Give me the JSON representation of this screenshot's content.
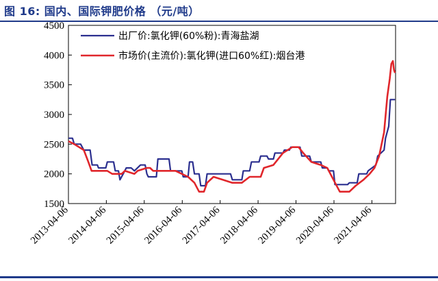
{
  "figure": {
    "title": "图 16:  国内、国际钾肥价格 （元/吨）"
  },
  "chart_data": {
    "type": "line",
    "title": "",
    "xlabel": "",
    "ylabel": "",
    "ylim": [
      1500,
      4500
    ],
    "yticks": [
      1500,
      2000,
      2500,
      3000,
      3500,
      4000,
      4500
    ],
    "xticks": [
      "2013-04-06",
      "2014-04-06",
      "2015-04-06",
      "2016-04-06",
      "2017-04-06",
      "2018-04-06",
      "2019-04-06",
      "2020-04-06",
      "2021-04-06"
    ],
    "xlim": [
      "2013-04-06",
      "2021-11-20"
    ],
    "grid": false,
    "legend_position": "top-left",
    "series": [
      {
        "name": "出厂价:氯化钾(60%粉):青海盐湖",
        "color": "#2b2f8f",
        "points": [
          [
            "2013-04-06",
            2600
          ],
          [
            "2013-05-15",
            2600
          ],
          [
            "2013-06-01",
            2500
          ],
          [
            "2013-08-01",
            2500
          ],
          [
            "2013-09-01",
            2400
          ],
          [
            "2013-11-01",
            2400
          ],
          [
            "2013-11-20",
            2150
          ],
          [
            "2014-01-10",
            2150
          ],
          [
            "2014-01-20",
            2100
          ],
          [
            "2014-04-01",
            2100
          ],
          [
            "2014-04-15",
            2200
          ],
          [
            "2014-06-15",
            2200
          ],
          [
            "2014-07-01",
            2050
          ],
          [
            "2014-08-01",
            2050
          ],
          [
            "2014-08-15",
            1900
          ],
          [
            "2014-09-15",
            2000
          ],
          [
            "2014-10-15",
            2100
          ],
          [
            "2014-12-01",
            2100
          ],
          [
            "2015-01-01",
            2050
          ],
          [
            "2015-03-01",
            2150
          ],
          [
            "2015-04-15",
            2150
          ],
          [
            "2015-05-01",
            2000
          ],
          [
            "2015-05-15",
            1950
          ],
          [
            "2015-08-01",
            1950
          ],
          [
            "2015-08-15",
            2250
          ],
          [
            "2015-12-01",
            2250
          ],
          [
            "2015-12-15",
            2050
          ],
          [
            "2016-04-01",
            2050
          ],
          [
            "2016-04-15",
            1950
          ],
          [
            "2016-06-01",
            1950
          ],
          [
            "2016-06-15",
            2200
          ],
          [
            "2016-07-15",
            2200
          ],
          [
            "2016-08-01",
            2000
          ],
          [
            "2016-09-15",
            2000
          ],
          [
            "2016-10-01",
            1800
          ],
          [
            "2016-11-15",
            1800
          ],
          [
            "2016-12-01",
            2000
          ],
          [
            "2017-07-15",
            2000
          ],
          [
            "2017-08-01",
            1900
          ],
          [
            "2017-11-01",
            1900
          ],
          [
            "2017-11-15",
            2050
          ],
          [
            "2018-01-15",
            2050
          ],
          [
            "2018-02-01",
            2200
          ],
          [
            "2018-04-15",
            2200
          ],
          [
            "2018-05-01",
            2300
          ],
          [
            "2018-07-01",
            2300
          ],
          [
            "2018-07-15",
            2250
          ],
          [
            "2018-09-01",
            2250
          ],
          [
            "2018-09-15",
            2350
          ],
          [
            "2018-12-01",
            2350
          ],
          [
            "2018-12-15",
            2400
          ],
          [
            "2019-02-01",
            2400
          ],
          [
            "2019-02-15",
            2450
          ],
          [
            "2019-05-15",
            2450
          ],
          [
            "2019-06-01",
            2300
          ],
          [
            "2019-08-15",
            2300
          ],
          [
            "2019-09-01",
            2200
          ],
          [
            "2019-12-01",
            2200
          ],
          [
            "2019-12-15",
            2100
          ],
          [
            "2020-02-01",
            2100
          ],
          [
            "2020-02-15",
            2050
          ],
          [
            "2020-04-01",
            2050
          ],
          [
            "2020-04-15",
            1820
          ],
          [
            "2020-08-15",
            1820
          ],
          [
            "2020-09-01",
            1850
          ],
          [
            "2020-11-15",
            1850
          ],
          [
            "2020-12-01",
            2000
          ],
          [
            "2021-02-15",
            2000
          ],
          [
            "2021-03-01",
            2050
          ],
          [
            "2021-05-15",
            2150
          ],
          [
            "2021-06-01",
            2300
          ],
          [
            "2021-08-01",
            2400
          ],
          [
            "2021-08-15",
            2600
          ],
          [
            "2021-09-15",
            2800
          ],
          [
            "2021-10-01",
            3250
          ],
          [
            "2021-11-15",
            3250
          ]
        ]
      },
      {
        "name": "市场价(主流价):氯化钾(进口60%红):烟台港",
        "color": "#e0262b",
        "points": [
          [
            "2013-04-06",
            2550
          ],
          [
            "2013-06-01",
            2500
          ],
          [
            "2013-09-01",
            2400
          ],
          [
            "2013-10-15",
            2200
          ],
          [
            "2013-11-15",
            2050
          ],
          [
            "2014-04-15",
            2050
          ],
          [
            "2014-06-01",
            2000
          ],
          [
            "2014-09-01",
            2000
          ],
          [
            "2014-10-01",
            2050
          ],
          [
            "2015-01-01",
            2000
          ],
          [
            "2015-02-01",
            2050
          ],
          [
            "2015-05-01",
            2100
          ],
          [
            "2015-06-01",
            2100
          ],
          [
            "2015-07-01",
            2050
          ],
          [
            "2016-02-01",
            2050
          ],
          [
            "2016-04-01",
            2000
          ],
          [
            "2016-06-01",
            1950
          ],
          [
            "2016-08-01",
            1850
          ],
          [
            "2016-09-15",
            1700
          ],
          [
            "2016-11-01",
            1700
          ],
          [
            "2016-12-01",
            1850
          ],
          [
            "2017-02-01",
            1950
          ],
          [
            "2017-05-01",
            1900
          ],
          [
            "2017-08-01",
            1850
          ],
          [
            "2017-11-01",
            1850
          ],
          [
            "2018-01-15",
            1950
          ],
          [
            "2018-05-01",
            1950
          ],
          [
            "2018-06-01",
            2100
          ],
          [
            "2018-09-01",
            2150
          ],
          [
            "2018-12-01",
            2350
          ],
          [
            "2019-03-01",
            2450
          ],
          [
            "2019-05-01",
            2450
          ],
          [
            "2019-06-15",
            2350
          ],
          [
            "2019-09-01",
            2200
          ],
          [
            "2019-12-01",
            2150
          ],
          [
            "2020-02-01",
            2100
          ],
          [
            "2020-04-01",
            1900
          ],
          [
            "2020-06-01",
            1700
          ],
          [
            "2020-09-01",
            1700
          ],
          [
            "2020-11-01",
            1800
          ],
          [
            "2021-01-15",
            1900
          ],
          [
            "2021-03-15",
            2000
          ],
          [
            "2021-05-01",
            2100
          ],
          [
            "2021-06-15",
            2300
          ],
          [
            "2021-08-01",
            2700
          ],
          [
            "2021-09-01",
            3300
          ],
          [
            "2021-09-25",
            3600
          ],
          [
            "2021-10-10",
            3850
          ],
          [
            "2021-10-25",
            3900
          ],
          [
            "2021-11-05",
            3750
          ],
          [
            "2021-11-15",
            3700
          ]
        ]
      }
    ]
  }
}
